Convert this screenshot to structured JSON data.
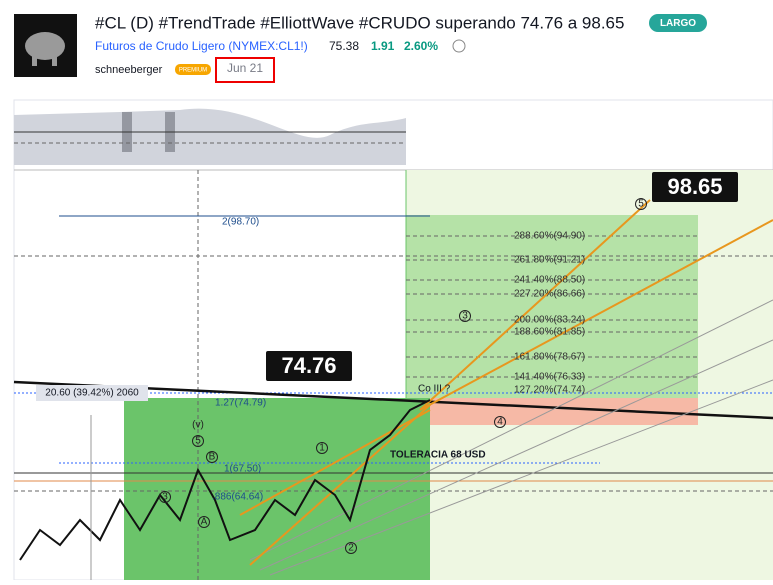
{
  "header": {
    "title": "#CL (D) #TrendTrade #ElliottWave #CRUDO superando 74.76 a 98.65",
    "badge": "LARGO",
    "symbol": "Futuros de Crudo Ligero (NYMEX:CL1!)",
    "price": "75.38",
    "change": "1.91",
    "change_percent": "2.60%",
    "author": "schneeberger",
    "author_badge": "PREMIUM",
    "date": "Jun 21"
  },
  "chart": {
    "callouts": [
      "98.65",
      "74.76"
    ],
    "fib_labels": [
      "288.60%(94.90)",
      "261.80%(91.21)",
      "241.40%(88.50)",
      "227.20%(86.66)",
      "200.00%(83.24)",
      "188.60%(81.85)",
      "161.80%(78.67)",
      "141.40%(76.33)",
      "127.20%(74.74)"
    ],
    "annotations": {
      "target": "2(98.70)",
      "measure": "20.60 (39.42%) 2060",
      "level_1": "1.27(74.79)",
      "tolerance": "TOLERACIA 68 USD",
      "level_2": "1(67.50)",
      "level_3": ".886(64.64)",
      "wave_note": "Co III ?"
    },
    "wave_labels": [
      "(v)",
      "5",
      "B",
      "A",
      "3",
      "1",
      "2",
      "3",
      "4",
      "5"
    ]
  }
}
